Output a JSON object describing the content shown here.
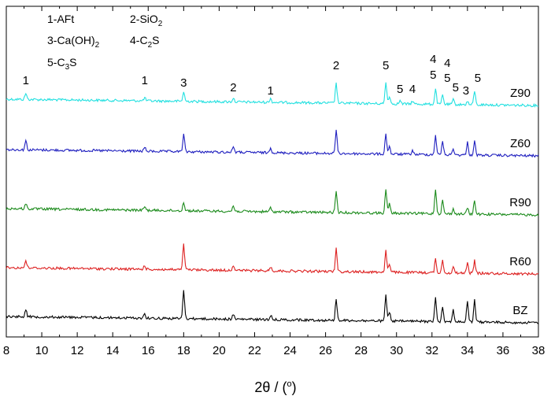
{
  "chart_data": {
    "type": "line",
    "title": "",
    "xlabel_parts": {
      "symbol": "2θ",
      "unit": "( )",
      "degree": "o"
    },
    "ylabel": "",
    "xlim": [
      8,
      38
    ],
    "x_ticks": [
      8,
      10,
      12,
      14,
      16,
      18,
      20,
      22,
      24,
      26,
      28,
      30,
      32,
      34,
      36,
      38
    ],
    "grid": false,
    "legend_placement": "top-left",
    "legend": [
      {
        "number": "1",
        "name": "AFt",
        "sub": ""
      },
      {
        "number": "2",
        "name": "SiO",
        "sub": "2"
      },
      {
        "number": "3",
        "name": "Ca(OH)",
        "sub": "2"
      },
      {
        "number": "4",
        "name": "C",
        "sub": "2",
        "tail": "S"
      },
      {
        "number": "5",
        "name": "C",
        "sub": "3",
        "tail": "S"
      }
    ],
    "series": [
      {
        "name": "Z90",
        "color": "#22e0e0",
        "peaks": [
          [
            9.1,
            8
          ],
          [
            15.8,
            4
          ],
          [
            18.0,
            12
          ],
          [
            20.8,
            5
          ],
          [
            22.9,
            5
          ],
          [
            26.6,
            26
          ],
          [
            29.4,
            28
          ],
          [
            29.6,
            10
          ],
          [
            30.2,
            4
          ],
          [
            30.9,
            4
          ],
          [
            32.2,
            20
          ],
          [
            32.6,
            12
          ],
          [
            33.2,
            6
          ],
          [
            34.0,
            4
          ],
          [
            34.4,
            18
          ]
        ]
      },
      {
        "name": "Z60",
        "color": "#1f1fbf",
        "peaks": [
          [
            9.1,
            12
          ],
          [
            15.8,
            5
          ],
          [
            18.0,
            22
          ],
          [
            20.8,
            8
          ],
          [
            22.9,
            7
          ],
          [
            26.6,
            30
          ],
          [
            29.4,
            26
          ],
          [
            29.6,
            10
          ],
          [
            30.9,
            5
          ],
          [
            32.2,
            25
          ],
          [
            32.6,
            18
          ],
          [
            33.2,
            8
          ],
          [
            34.0,
            16
          ],
          [
            34.4,
            18
          ]
        ]
      },
      {
        "name": "R90",
        "color": "#1a8a1a",
        "peaks": [
          [
            9.1,
            7
          ],
          [
            15.8,
            5
          ],
          [
            18.0,
            11
          ],
          [
            20.8,
            7
          ],
          [
            22.9,
            5
          ],
          [
            26.6,
            26
          ],
          [
            29.4,
            30
          ],
          [
            29.6,
            12
          ],
          [
            32.2,
            32
          ],
          [
            32.6,
            17
          ],
          [
            33.2,
            6
          ],
          [
            34.0,
            8
          ],
          [
            34.4,
            18
          ]
        ]
      },
      {
        "name": "R60",
        "color": "#dd2020",
        "peaks": [
          [
            9.1,
            10
          ],
          [
            15.8,
            5
          ],
          [
            18.0,
            32
          ],
          [
            20.8,
            7
          ],
          [
            22.9,
            5
          ],
          [
            26.6,
            30
          ],
          [
            29.4,
            28
          ],
          [
            29.6,
            10
          ],
          [
            32.2,
            17
          ],
          [
            32.6,
            16
          ],
          [
            33.2,
            8
          ],
          [
            34.0,
            14
          ],
          [
            34.4,
            16
          ]
        ]
      },
      {
        "name": "BZ",
        "color": "#000000",
        "peaks": [
          [
            9.1,
            10
          ],
          [
            15.8,
            6
          ],
          [
            18.0,
            36
          ],
          [
            20.8,
            6
          ],
          [
            22.9,
            6
          ],
          [
            26.6,
            28
          ],
          [
            29.4,
            32
          ],
          [
            29.6,
            12
          ],
          [
            32.2,
            32
          ],
          [
            32.6,
            20
          ],
          [
            33.2,
            15
          ],
          [
            34.0,
            26
          ],
          [
            34.4,
            28
          ]
        ]
      }
    ],
    "peak_annotations": [
      {
        "text": "1",
        "x": 9.1
      },
      {
        "text": "1",
        "x": 15.8
      },
      {
        "text": "3",
        "x": 18.0
      },
      {
        "text": "2",
        "x": 20.8
      },
      {
        "text": "1",
        "x": 22.9
      },
      {
        "text": "2",
        "x": 26.6
      },
      {
        "text": "5",
        "x": 29.4
      },
      {
        "text": "5",
        "x": 30.2
      },
      {
        "text": "4",
        "x": 30.9
      },
      {
        "text": "4",
        "x": 32.2
      },
      {
        "text": "4",
        "x": 32.6
      },
      {
        "text": "5",
        "x": 32.2
      },
      {
        "text": "5",
        "x": 32.6
      },
      {
        "text": "5",
        "x": 33.2
      },
      {
        "text": "3",
        "x": 34.0
      },
      {
        "text": "5",
        "x": 34.4
      }
    ]
  }
}
